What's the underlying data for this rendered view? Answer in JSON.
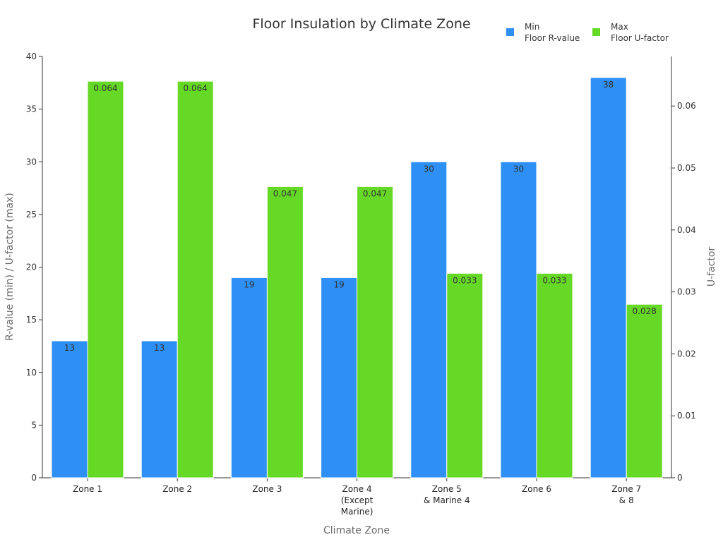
{
  "chart_data": {
    "type": "bar",
    "title": "Floor Insulation by Climate Zone",
    "xlabel": "Climate Zone",
    "ylabel": "R-value (min) / U-factor (max)",
    "y2label": "U-factor",
    "ylim": [
      0,
      40
    ],
    "y2lim": [
      0,
      0.068
    ],
    "yticks": [
      0,
      5,
      10,
      15,
      20,
      25,
      30,
      35,
      40
    ],
    "y2ticks": [
      0,
      0.01,
      0.02,
      0.03,
      0.04,
      0.05,
      0.06
    ],
    "y2tick_labels": [
      "0",
      "0.01",
      "0.02",
      "0.03",
      "0.04",
      "0.05",
      "0.06"
    ],
    "categories": [
      [
        "Zone 1"
      ],
      [
        "Zone 2"
      ],
      [
        "Zone 3"
      ],
      [
        "Zone 4",
        "(Except",
        "Marine)"
      ],
      [
        "Zone 5",
        "& Marine 4"
      ],
      [
        "Zone 6"
      ],
      [
        "Zone 7",
        "& 8"
      ]
    ],
    "series": [
      {
        "name": "Min Floor R-value",
        "legend_lines": [
          "Min",
          "Floor R-value"
        ],
        "axis": "left",
        "color": "#2e8ff5",
        "values": [
          13,
          13,
          19,
          19,
          30,
          30,
          38
        ],
        "labels": [
          "13",
          "13",
          "19",
          "19",
          "30",
          "30",
          "38"
        ]
      },
      {
        "name": "Max Floor U-factor",
        "legend_lines": [
          "Max",
          "Floor U-factor"
        ],
        "axis": "right",
        "color": "#66d926",
        "values": [
          0.064,
          0.064,
          0.047,
          0.047,
          0.033,
          0.033,
          0.028
        ],
        "labels": [
          "0.064",
          "0.064",
          "0.047",
          "0.047",
          "0.033",
          "0.033",
          "0.028"
        ]
      }
    ],
    "grid": false,
    "legend_position": "top-right"
  }
}
